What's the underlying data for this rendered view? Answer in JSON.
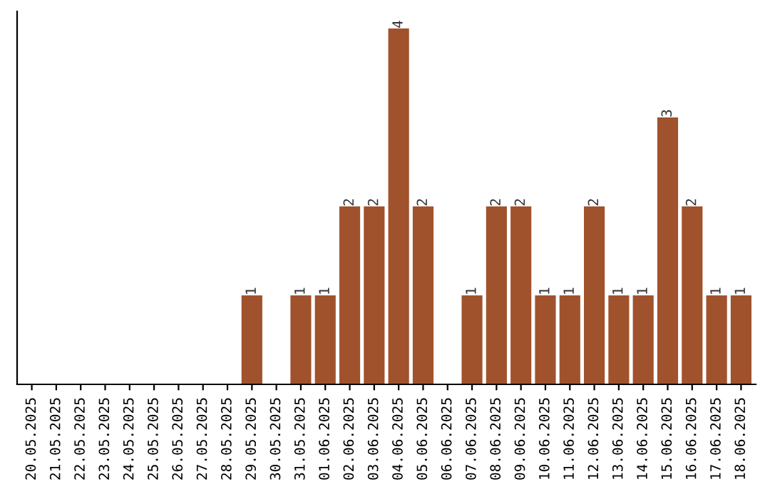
{
  "chart_data": {
    "type": "bar",
    "categories": [
      "20.05.2025",
      "21.05.2025",
      "22.05.2025",
      "23.05.2025",
      "24.05.2025",
      "25.05.2025",
      "26.05.2025",
      "27.05.2025",
      "28.05.2025",
      "29.05.2025",
      "30.05.2025",
      "31.05.2025",
      "01.06.2025",
      "02.06.2025",
      "03.06.2025",
      "04.06.2025",
      "05.06.2025",
      "06.06.2025",
      "07.06.2025",
      "08.06.2025",
      "09.06.2025",
      "10.06.2025",
      "11.06.2025",
      "12.06.2025",
      "13.06.2025",
      "14.06.2025",
      "15.06.2025",
      "16.06.2025",
      "17.06.2025",
      "18.06.2025"
    ],
    "values": [
      0,
      0,
      0,
      0,
      0,
      0,
      0,
      0,
      0,
      1,
      0,
      1,
      1,
      2,
      2,
      4,
      2,
      0,
      1,
      2,
      2,
      1,
      1,
      2,
      1,
      1,
      3,
      2,
      1,
      1
    ],
    "value_labels": [
      null,
      null,
      null,
      null,
      null,
      null,
      null,
      null,
      null,
      "1",
      null,
      "1",
      "1",
      "2",
      "2",
      "4",
      "2",
      null,
      "1",
      "2",
      "2",
      "1",
      "1",
      "2",
      "1",
      "1",
      "3",
      "2",
      "1",
      "1"
    ],
    "color": "#a0522d",
    "grid": false,
    "legend": false,
    "tick_labels": "x"
  }
}
